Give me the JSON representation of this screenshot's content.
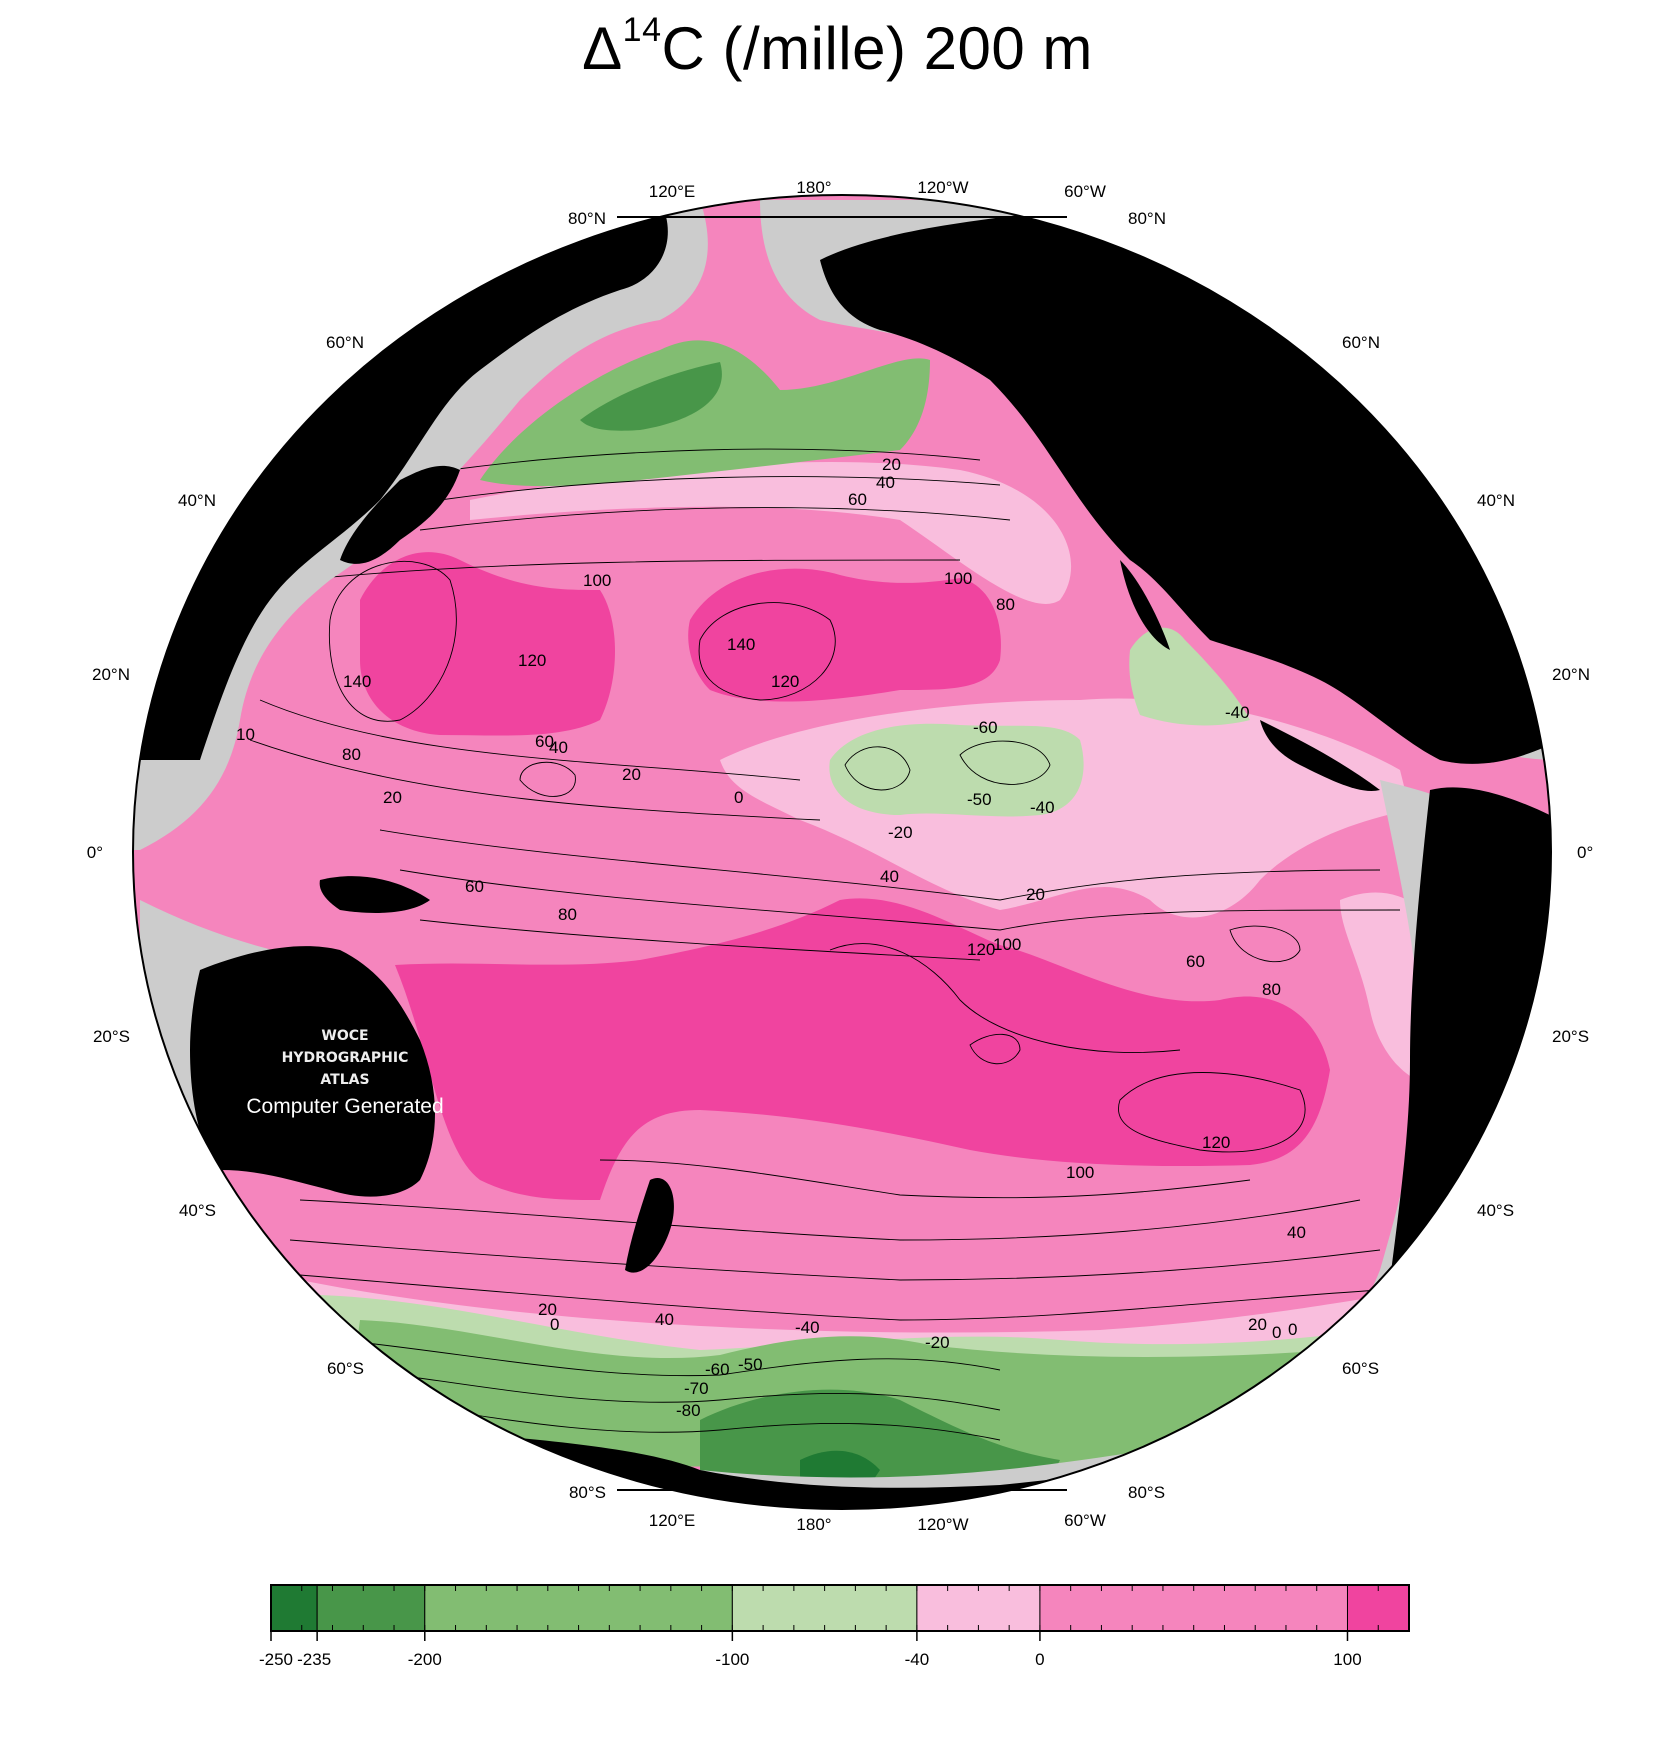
{
  "title": {
    "prefix": "Δ",
    "sup": "14",
    "rest": "C (/mille) 200 m"
  },
  "lon_labels": [
    "120°E",
    "180°",
    "120°W",
    "60°W"
  ],
  "lat_labels_left": [
    "80°N",
    "60°N",
    "40°N",
    "20°N",
    "0°",
    "20°S",
    "40°S",
    "60°S",
    "80°S"
  ],
  "lat_labels_right": [
    "80°N",
    "60°N",
    "40°N",
    "20°N",
    "0°",
    "20°S",
    "40°S",
    "60°S",
    "80°S"
  ],
  "contour_labels": [
    "20",
    "40",
    "60",
    "100",
    "80",
    "140",
    "120",
    "100",
    "140",
    "120",
    "80",
    "60",
    "40",
    "20",
    "0",
    "-60",
    "-50",
    "-40",
    "-20",
    "40",
    "20",
    "60",
    "80",
    "120",
    "100",
    "80",
    "60",
    "100",
    "120",
    "40",
    "20",
    "0",
    "40",
    "-40",
    "-20",
    "-50",
    "-60",
    "-70",
    "-80",
    "-40",
    "20",
    "0",
    "60",
    "20",
    "0",
    "10"
  ],
  "watermark": {
    "line1": "WOCE",
    "line2": "HYDROGRAPHIC",
    "line3": "ATLAS",
    "line4": "Computer Generated"
  },
  "colorbar": {
    "ticks": [
      "-250",
      "-235",
      "-200",
      "-100",
      "-40",
      "0",
      "100"
    ],
    "bins": [
      {
        "from": -250,
        "to": -235,
        "color": "#1f7a33"
      },
      {
        "from": -235,
        "to": -200,
        "color": "#489649"
      },
      {
        "from": -200,
        "to": -100,
        "color": "#82bd72"
      },
      {
        "from": -100,
        "to": -40,
        "color": "#bddcae"
      },
      {
        "from": -40,
        "to": 0,
        "color": "#f9bedd"
      },
      {
        "from": 0,
        "to": 100,
        "color": "#f585bd"
      },
      {
        "from": 100,
        "to": 120,
        "color": "#f0449f"
      }
    ]
  },
  "colors": {
    "land": "#000000",
    "shelf": "#cccccc",
    "outside": "#ffffff"
  }
}
